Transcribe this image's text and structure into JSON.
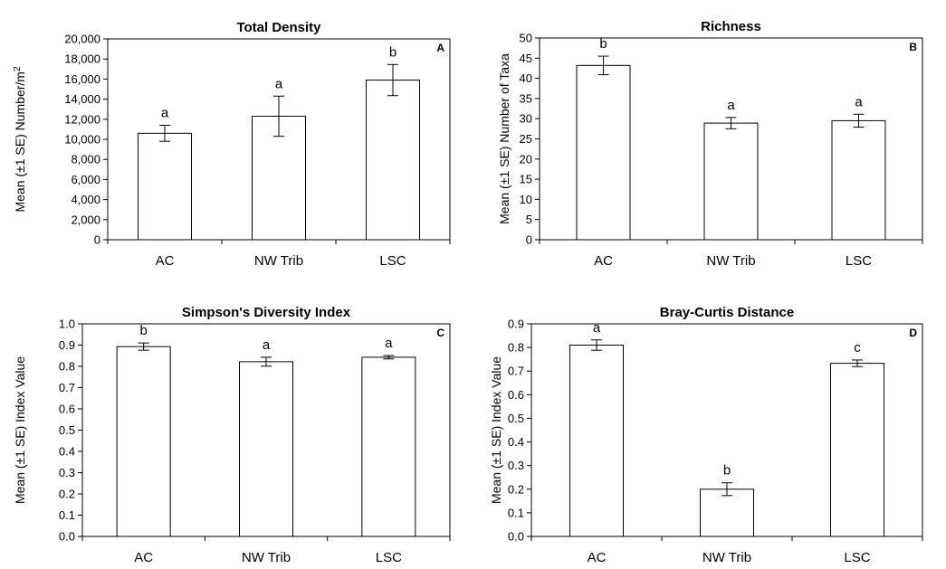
{
  "chart_data": [
    {
      "type": "bar",
      "title": "Total Density",
      "panel_label": "A",
      "ylabel": "Mean (±1 SE) Number/m",
      "ylabel_sup": "2",
      "categories": [
        "AC",
        "NW Trib",
        "LSC"
      ],
      "values": [
        10600,
        12300,
        15900
      ],
      "errors": [
        800,
        2000,
        1550
      ],
      "significance": [
        "a",
        "a",
        "b"
      ],
      "ylim": [
        0,
        20000
      ],
      "yticks": [
        "0",
        "2,000",
        "4,000",
        "6,000",
        "8,000",
        "10,000",
        "12,000",
        "14,000",
        "16,000",
        "18,000",
        "20,000"
      ],
      "legend": false,
      "grid": false
    },
    {
      "type": "bar",
      "title": "Richness",
      "panel_label": "B",
      "ylabel": "Mean (±1 SE) Number of Taxa",
      "categories": [
        "AC",
        "NW Trib",
        "LSC"
      ],
      "values": [
        43.2,
        28.9,
        29.5
      ],
      "errors": [
        2.3,
        1.4,
        1.6
      ],
      "significance": [
        "b",
        "a",
        "a"
      ],
      "ylim": [
        0,
        50
      ],
      "yticks": [
        "0",
        "5",
        "10",
        "15",
        "20",
        "25",
        "30",
        "35",
        "40",
        "45",
        "50"
      ],
      "legend": false,
      "grid": false
    },
    {
      "type": "bar",
      "title": "Simpson's Diversity Index",
      "panel_label": "C",
      "ylabel": "Mean (±1 SE) Index Value",
      "categories": [
        "AC",
        "NW Trib",
        "LSC"
      ],
      "values": [
        0.893,
        0.822,
        0.843
      ],
      "errors": [
        0.017,
        0.021,
        0.008
      ],
      "significance": [
        "b",
        "a",
        "a"
      ],
      "ylim": [
        0,
        1.0
      ],
      "yticks": [
        "0.0",
        "0.1",
        "0.2",
        "0.3",
        "0.4",
        "0.5",
        "0.6",
        "0.7",
        "0.8",
        "0.9",
        "1.0"
      ],
      "legend": false,
      "grid": false
    },
    {
      "type": "bar",
      "title": "Bray-Curtis Distance",
      "panel_label": "D",
      "ylabel": "Mean (±1 SE) Index Value",
      "categories": [
        "AC",
        "NW Trib",
        "LSC"
      ],
      "values": [
        0.81,
        0.2,
        0.733
      ],
      "errors": [
        0.022,
        0.027,
        0.014
      ],
      "significance": [
        "a",
        "b",
        "c"
      ],
      "ylim": [
        0,
        0.9
      ],
      "yticks": [
        "0.0",
        "0.1",
        "0.2",
        "0.3",
        "0.4",
        "0.5",
        "0.6",
        "0.7",
        "0.8",
        "0.9"
      ],
      "legend": false,
      "grid": false
    }
  ],
  "colors": {
    "bar_fill": "#ffffff",
    "stroke": "#000000",
    "text": "#000000"
  }
}
